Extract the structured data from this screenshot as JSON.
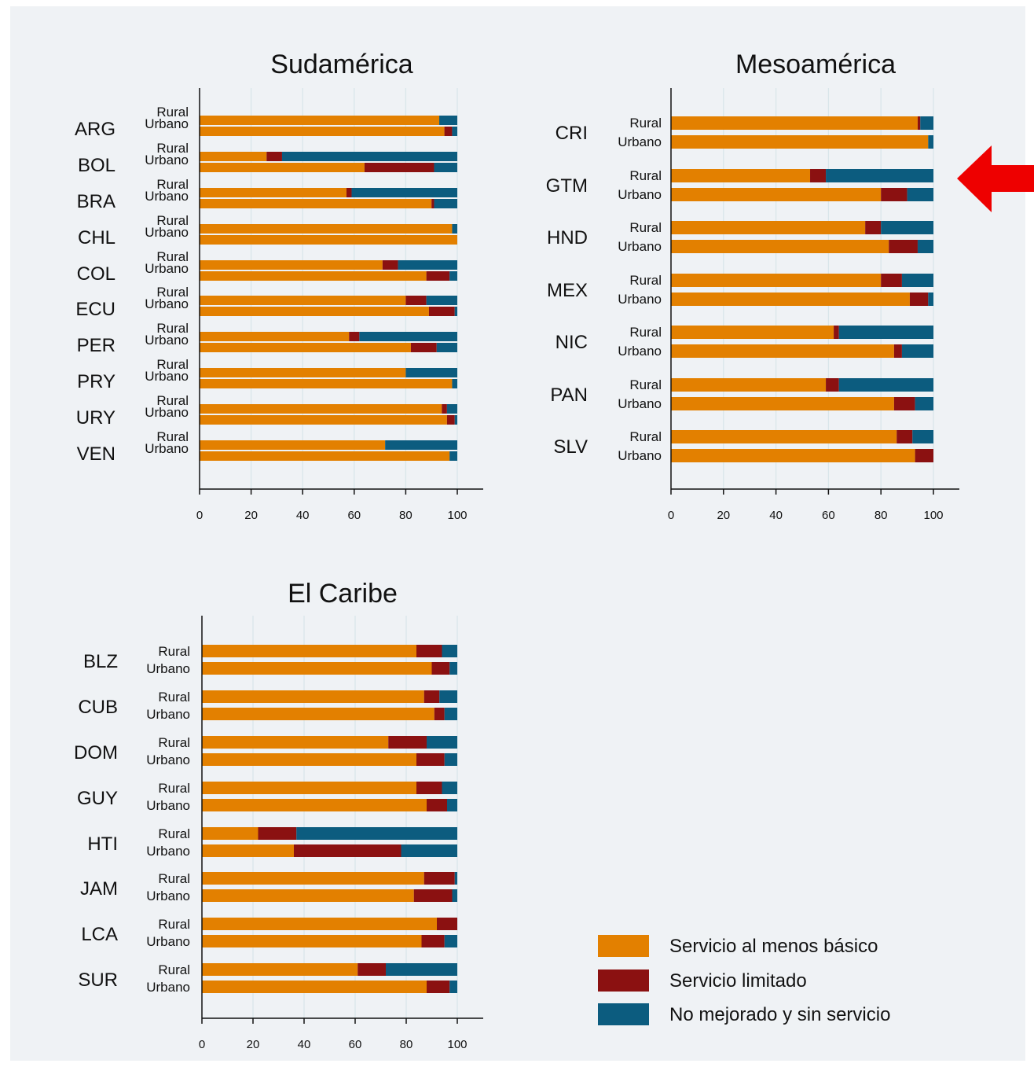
{
  "colors": {
    "basic": "#e38000",
    "limited": "#8b1111",
    "none": "#0c5c7f",
    "grid": "#d9e6ea",
    "arrow": "#ee0000"
  },
  "legend": [
    {
      "label": "Servicio al menos básico",
      "color_key": "basic"
    },
    {
      "label": "Servicio limitado",
      "color_key": "limited"
    },
    {
      "label": "No mejorado y sin servicio",
      "color_key": "none"
    }
  ],
  "chart_data": [
    {
      "type": "bar",
      "stacked": true,
      "orientation": "horizontal",
      "title": "Sudamérica",
      "xlim": [
        0,
        100
      ],
      "xticks": [
        0,
        20,
        40,
        60,
        80,
        100
      ],
      "grid": true,
      "subgroup_labels": [
        "Rural",
        "Urbano"
      ],
      "series_names": [
        "Servicio al menos básico",
        "Servicio limitado",
        "No mejorado y sin servicio"
      ],
      "groups": [
        {
          "country": "ARG",
          "rural": [
            93,
            0,
            7
          ],
          "urbano": [
            95,
            3,
            2
          ]
        },
        {
          "country": "BOL",
          "rural": [
            26,
            6,
            68
          ],
          "urbano": [
            64,
            27,
            9
          ]
        },
        {
          "country": "BRA",
          "rural": [
            57,
            2,
            41
          ],
          "urbano": [
            90,
            1,
            9
          ]
        },
        {
          "country": "CHL",
          "rural": [
            98,
            0,
            2
          ],
          "urbano": [
            100,
            0,
            0
          ]
        },
        {
          "country": "COL",
          "rural": [
            71,
            6,
            23
          ],
          "urbano": [
            88,
            9,
            3
          ]
        },
        {
          "country": "ECU",
          "rural": [
            80,
            8,
            12
          ],
          "urbano": [
            89,
            10,
            1
          ]
        },
        {
          "country": "PER",
          "rural": [
            58,
            4,
            38
          ],
          "urbano": [
            82,
            10,
            8
          ]
        },
        {
          "country": "PRY",
          "rural": [
            80,
            0,
            20
          ],
          "urbano": [
            98,
            0,
            2
          ]
        },
        {
          "country": "URY",
          "rural": [
            94,
            2,
            4
          ],
          "urbano": [
            96,
            3,
            1
          ]
        },
        {
          "country": "VEN",
          "rural": [
            72,
            0,
            28
          ],
          "urbano": [
            97,
            0,
            3
          ]
        }
      ]
    },
    {
      "type": "bar",
      "stacked": true,
      "orientation": "horizontal",
      "title": "Mesoamérica",
      "xlim": [
        0,
        100
      ],
      "xticks": [
        0,
        20,
        40,
        60,
        80,
        100
      ],
      "grid": true,
      "subgroup_labels": [
        "Rural",
        "Urbano"
      ],
      "series_names": [
        "Servicio al menos básico",
        "Servicio limitado",
        "No mejorado y sin servicio"
      ],
      "groups": [
        {
          "country": "CRI",
          "rural": [
            94,
            1,
            5
          ],
          "urbano": [
            98,
            0,
            2
          ]
        },
        {
          "country": "GTM",
          "rural": [
            53,
            6,
            41
          ],
          "urbano": [
            80,
            10,
            10
          ]
        },
        {
          "country": "HND",
          "rural": [
            74,
            6,
            20
          ],
          "urbano": [
            83,
            11,
            6
          ]
        },
        {
          "country": "MEX",
          "rural": [
            80,
            8,
            12
          ],
          "urbano": [
            91,
            7,
            2
          ]
        },
        {
          "country": "NIC",
          "rural": [
            62,
            2,
            36
          ],
          "urbano": [
            85,
            3,
            12
          ]
        },
        {
          "country": "PAN",
          "rural": [
            59,
            5,
            36
          ],
          "urbano": [
            85,
            8,
            7
          ]
        },
        {
          "country": "SLV",
          "rural": [
            86,
            6,
            8
          ],
          "urbano": [
            93,
            7,
            0
          ]
        }
      ]
    },
    {
      "type": "bar",
      "stacked": true,
      "orientation": "horizontal",
      "title": "El Caribe",
      "xlim": [
        0,
        100
      ],
      "xticks": [
        0,
        20,
        40,
        60,
        80,
        100
      ],
      "grid": true,
      "subgroup_labels": [
        "Rural",
        "Urbano"
      ],
      "series_names": [
        "Servicio al menos básico",
        "Servicio limitado",
        "No mejorado y sin servicio"
      ],
      "groups": [
        {
          "country": "BLZ",
          "rural": [
            84,
            10,
            6
          ],
          "urbano": [
            90,
            7,
            3
          ]
        },
        {
          "country": "CUB",
          "rural": [
            87,
            6,
            7
          ],
          "urbano": [
            91,
            4,
            5
          ]
        },
        {
          "country": "DOM",
          "rural": [
            73,
            15,
            12
          ],
          "urbano": [
            84,
            11,
            5
          ]
        },
        {
          "country": "GUY",
          "rural": [
            84,
            10,
            6
          ],
          "urbano": [
            88,
            8,
            4
          ]
        },
        {
          "country": "HTI",
          "rural": [
            22,
            15,
            63
          ],
          "urbano": [
            36,
            42,
            22
          ]
        },
        {
          "country": "JAM",
          "rural": [
            87,
            12,
            1
          ],
          "urbano": [
            83,
            15,
            2
          ]
        },
        {
          "country": "LCA",
          "rural": [
            92,
            8,
            0
          ],
          "urbano": [
            86,
            9,
            5
          ]
        },
        {
          "country": "SUR",
          "rural": [
            61,
            11,
            28
          ],
          "urbano": [
            88,
            9,
            3
          ]
        }
      ]
    }
  ]
}
